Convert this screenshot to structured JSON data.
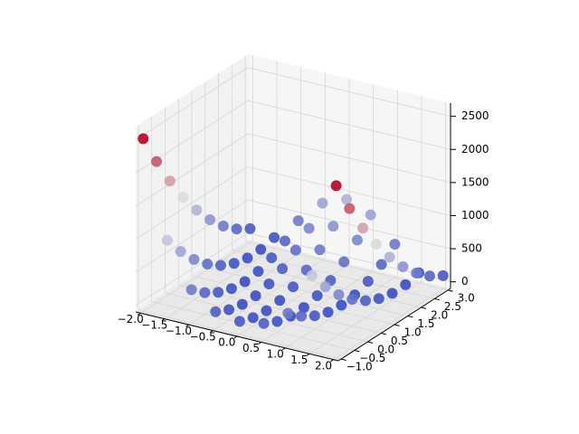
{
  "chart_data": {
    "type": "scatter3d",
    "x": [
      -2,
      -1.5,
      -1,
      -0.5,
      0,
      0.5,
      1,
      1.5,
      2
    ],
    "y": [
      -1,
      -0.5,
      0,
      0.5,
      1,
      1.5,
      2,
      2.5,
      3
    ],
    "z": [
      [
        2509,
        2034,
        1609,
        1234,
        909,
        634,
        409,
        234,
        109
      ],
      [
        1062.5,
        762.5,
        512.5,
        312.5,
        162.5,
        62.5,
        12.5,
        12.5,
        62.5
      ],
      [
        404,
        229,
        104,
        29,
        4,
        29,
        104,
        229,
        404
      ],
      [
        158.5,
        58.5,
        8.5,
        8.5,
        58.5,
        158.5,
        308.5,
        508.5,
        758.5
      ],
      [
        101,
        26,
        1,
        26,
        101,
        226,
        401,
        626,
        901
      ],
      [
        156.5,
        56.5,
        6.5,
        6.5,
        56.5,
        156.5,
        306.5,
        506.5,
        756.5
      ],
      [
        400,
        225,
        100,
        25,
        0,
        25,
        100,
        225,
        400
      ],
      [
        1056.5,
        756.5,
        506.5,
        306.5,
        156.5,
        56.5,
        6.5,
        6.5,
        56.5
      ],
      [
        2501,
        2026,
        1601,
        1226,
        901,
        626,
        401,
        226,
        101
      ]
    ],
    "colormap": [
      "#3b4cc0",
      "#dddddd",
      "#b40426"
    ],
    "xlim": [
      -2.1,
      2.1
    ],
    "ylim": [
      -1.1,
      3.1
    ],
    "zlim": [
      -100,
      2700
    ],
    "xticks": [
      {
        "value": -2,
        "label": "−2.0"
      },
      {
        "value": -1.5,
        "label": "−1.5"
      },
      {
        "value": -1,
        "label": "−1.0"
      },
      {
        "value": -0.5,
        "label": "−0.5"
      },
      {
        "value": 0,
        "label": "0.0"
      },
      {
        "value": 0.5,
        "label": "0.5"
      },
      {
        "value": 1,
        "label": "1.0"
      },
      {
        "value": 1.5,
        "label": "1.5"
      },
      {
        "value": 2,
        "label": "2.0"
      }
    ],
    "yticks": [
      {
        "value": -1,
        "label": "−1.0"
      },
      {
        "value": -0.5,
        "label": "−0.5"
      },
      {
        "value": 0,
        "label": "0.0"
      },
      {
        "value": 0.5,
        "label": "0.5"
      },
      {
        "value": 1,
        "label": "1.0"
      },
      {
        "value": 1.5,
        "label": "1.5"
      },
      {
        "value": 2,
        "label": "2.0"
      },
      {
        "value": 2.5,
        "label": "2.5"
      },
      {
        "value": 3,
        "label": "3.0"
      }
    ],
    "zticks": [
      0,
      500,
      1000,
      1500,
      2000,
      2500
    ],
    "grid": true
  }
}
